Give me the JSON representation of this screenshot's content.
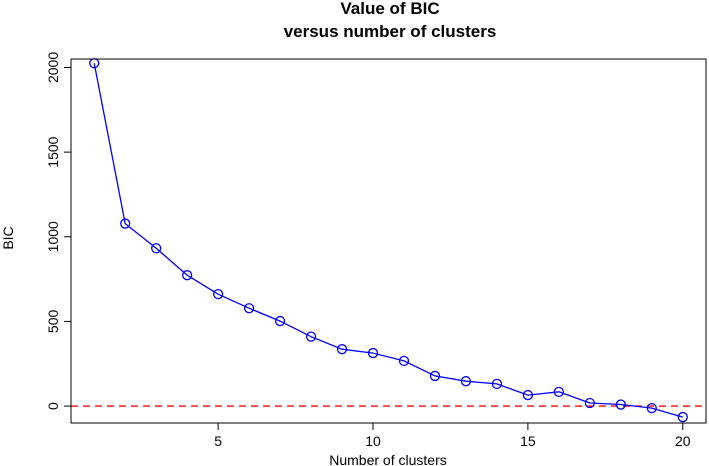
{
  "chart_data": {
    "type": "line",
    "title": [
      "Value of BIC",
      "versus number of clusters"
    ],
    "xlabel": "Number of clusters",
    "ylabel": "BIC",
    "xlim": [
      0.25,
      20.75
    ],
    "ylim": [
      -100,
      2050
    ],
    "xticks": [
      5,
      10,
      15,
      20
    ],
    "yticks": [
      0,
      500,
      1000,
      1500,
      2000
    ],
    "grid": false,
    "series": [
      {
        "color": "#0000ff",
        "marker": "circle-open",
        "x": [
          1,
          2,
          3,
          4,
          5,
          6,
          7,
          8,
          9,
          10,
          11,
          12,
          13,
          14,
          15,
          16,
          17,
          18,
          19,
          20
        ],
        "y": [
          2025,
          1078,
          932,
          773,
          661,
          578,
          502,
          410,
          336,
          313,
          267,
          178,
          147,
          131,
          65,
          84,
          18,
          9,
          -12,
          -65
        ]
      }
    ],
    "reference_line": {
      "y": 0,
      "color": "#ff0000",
      "style": "dashed"
    }
  }
}
